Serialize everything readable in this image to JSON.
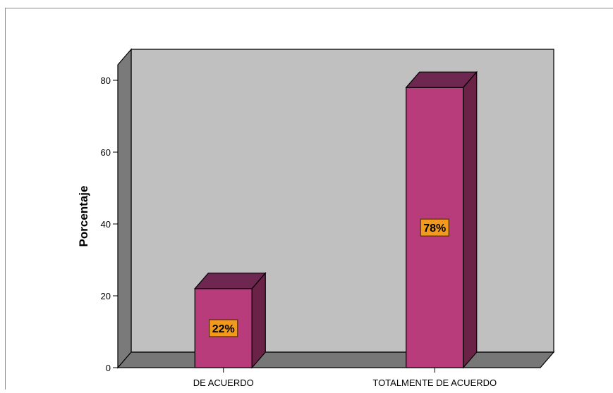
{
  "chart_data": {
    "type": "bar",
    "style": "3d",
    "categories": [
      "DE ACUERDO",
      "TOTALMENTE DE ACUERDO"
    ],
    "values": [
      22,
      78
    ],
    "data_labels": [
      "22%",
      "78%"
    ],
    "ylabel": "Porcentaje",
    "xlabel": "",
    "ylim": [
      0,
      80
    ],
    "yticks": [
      0,
      20,
      40,
      60,
      80
    ],
    "grid": false,
    "legend": "none"
  },
  "colors": {
    "bar_front": "#b83c7c",
    "bar_top": "#6e2750",
    "bar_side": "#6a2346",
    "wall_back": "#c0c0c0",
    "wall_left": "#7a7a7a",
    "floor": "#777777",
    "label_bg": "#f29a1d",
    "label_border": "#5a3000"
  }
}
